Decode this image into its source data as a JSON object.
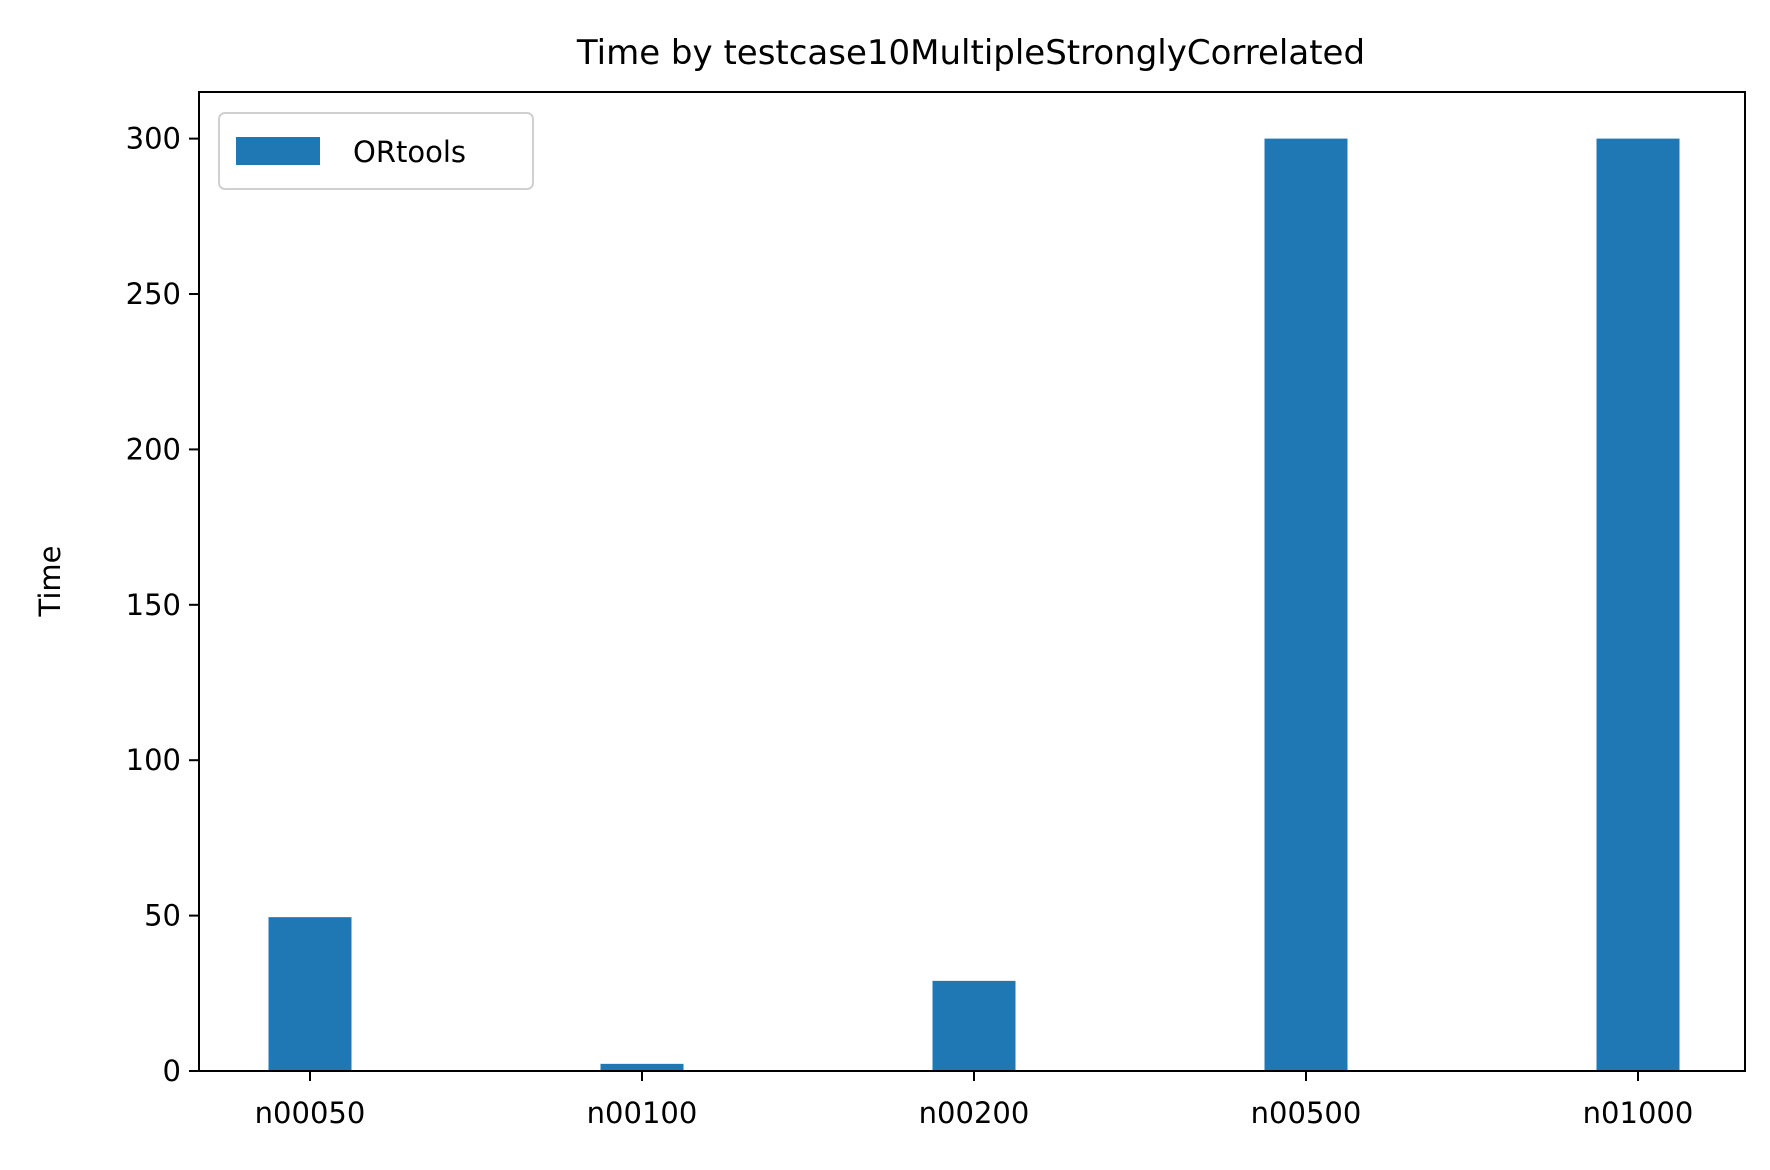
{
  "chart_data": {
    "type": "bar",
    "title": "Time by testcase10MultipleStronglyCorrelated",
    "xlabel": "",
    "ylabel": "Time",
    "categories": [
      "n00050",
      "n00100",
      "n00200",
      "n00500",
      "n01000"
    ],
    "series": [
      {
        "name": "ORtools",
        "values": [
          49.5,
          2.3,
          29.0,
          300.0,
          300.0
        ],
        "color": "#1f77b4"
      }
    ],
    "ylim": [
      0,
      315
    ],
    "yticks": [
      0,
      50,
      100,
      150,
      200,
      250,
      300
    ],
    "legend_position": "upper-left",
    "grid": false
  }
}
